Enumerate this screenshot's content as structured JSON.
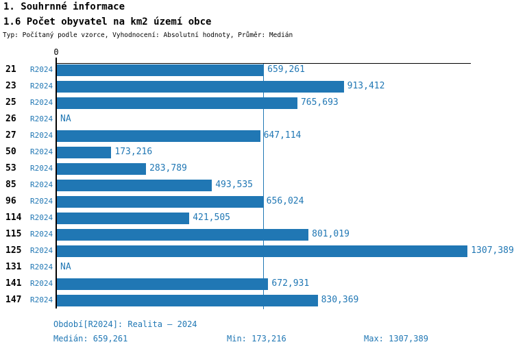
{
  "title": "1. Souhrnné informace",
  "subtitle": "1.6 Počet obyvatel na km2 území obce",
  "meta_line": "Typ: Počítaný podle vzorce, Vyhodnocení: Absolutní hodnoty, Průměr: Medián",
  "colors": {
    "bar": "#2077b4",
    "blue_text": "#2077b4",
    "axis": "#000000"
  },
  "chart_data": {
    "type": "bar",
    "orientation": "horizontal",
    "title": "1.6 Počet obyvatel na km2 území obce",
    "series_label": "R2024",
    "x_axis": {
      "zero_label": "0",
      "max": 1320,
      "gridlines": false
    },
    "categories": [
      "21",
      "23",
      "25",
      "26",
      "27",
      "50",
      "53",
      "85",
      "96",
      "114",
      "115",
      "125",
      "131",
      "141",
      "147"
    ],
    "values": [
      659.261,
      913.412,
      765.693,
      null,
      647.114,
      173.216,
      283.789,
      493.535,
      656.024,
      421.505,
      801.019,
      1307.389,
      null,
      672.931,
      830.369
    ],
    "value_labels": [
      "659,261",
      "913,412",
      "765,693",
      "NA",
      "647,114",
      "173,216",
      "283,789",
      "493,535",
      "656,024",
      "421,505",
      "801,019",
      "1307,389",
      "NA",
      "672,931",
      "830,369"
    ],
    "median": {
      "value": 659.261,
      "label": "659,261"
    }
  },
  "footer": {
    "period": "Období[R2024]: Realita – 2024",
    "median": "Medián: 659,261",
    "min": "Min: 173,216",
    "max": "Max: 1307,389"
  }
}
